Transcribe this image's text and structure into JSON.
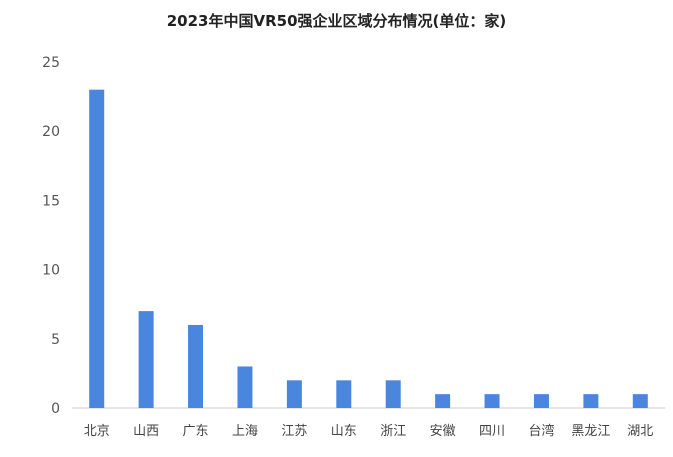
{
  "chart_data": {
    "type": "bar",
    "title": "2023年中国VR50强企业区域分布情况(单位：家)",
    "categories": [
      "北京",
      "山西",
      "广东",
      "上海",
      "江苏",
      "山东",
      "浙江",
      "安徽",
      "四川",
      "台湾",
      "黑龙江",
      "湖北"
    ],
    "values": [
      23,
      7,
      6,
      3,
      2,
      2,
      2,
      1,
      1,
      1,
      1,
      1
    ],
    "ylim": [
      0,
      25
    ],
    "yticks": [
      0,
      5,
      10,
      15,
      20,
      25
    ],
    "xlabel": "",
    "ylabel": "",
    "grid": false,
    "bar_color": "#4a86de"
  }
}
